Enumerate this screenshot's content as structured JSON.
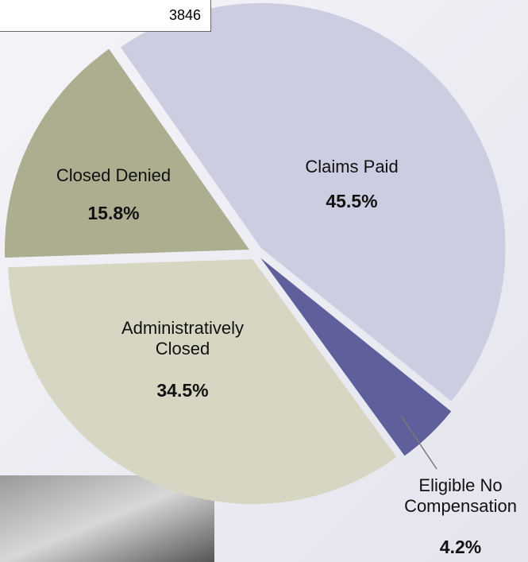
{
  "box_text": "3846",
  "chart_data": {
    "type": "pie",
    "categories": [
      "Claims Paid",
      "Eligible No Compensation",
      "Administratively Closed",
      "Closed Denied"
    ],
    "values": [
      45.5,
      4.2,
      34.5,
      15.8
    ],
    "value_labels": [
      "45.5%",
      "4.2%",
      "34.5%",
      "15.8%"
    ],
    "colors": [
      "#cdcde2",
      "#5f5f9c",
      "#d6d6c2",
      "#adad90"
    ]
  }
}
